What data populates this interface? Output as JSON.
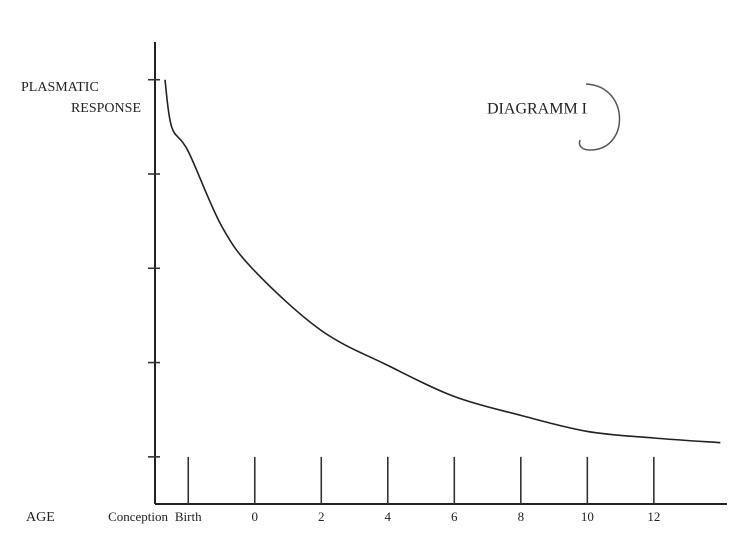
{
  "chart_data": {
    "type": "line",
    "title": "DIAGRAMM I",
    "ylabel": [
      "PLASMATIC",
      "RESPONSE"
    ],
    "xlabel": "AGE",
    "x": [
      -2.7,
      -2.5,
      -2,
      -1,
      0,
      2,
      4,
      6,
      8,
      10,
      12,
      14
    ],
    "series": [
      {
        "color": "#222222",
        "values": [
          4.0,
          3.5,
          3.24,
          2.45,
          1.97,
          1.34,
          0.97,
          0.64,
          0.44,
          0.27,
          0.2,
          0.15
        ]
      }
    ],
    "xlim": [
      -3,
      14.2
    ],
    "xticks": [
      {
        "value": -3,
        "label": "Conception"
      },
      {
        "value": -2,
        "label": "Birth"
      },
      0,
      2,
      4,
      6,
      8,
      10,
      12
    ],
    "ylim": [
      -0.5,
      4.4
    ],
    "yticks": [
      0,
      1,
      2,
      3,
      4
    ]
  }
}
